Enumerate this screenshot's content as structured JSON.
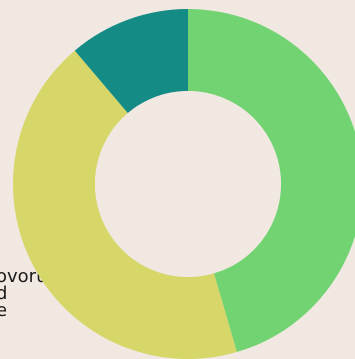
{
  "chart_data": {
    "type": "pie",
    "donut": true,
    "title": "",
    "slices": [
      {
        "value": 45.5,
        "color": "#72d372"
      },
      {
        "value": 43.3,
        "color": "#d7d669"
      },
      {
        "value": 11.2,
        "color": "#148c85"
      }
    ]
  },
  "partial_label": {
    "lines": [
      "ovoru,",
      "d",
      "e"
    ]
  },
  "colors": {
    "background": "#f1e8e2",
    "hole": "#f1e8e2"
  }
}
